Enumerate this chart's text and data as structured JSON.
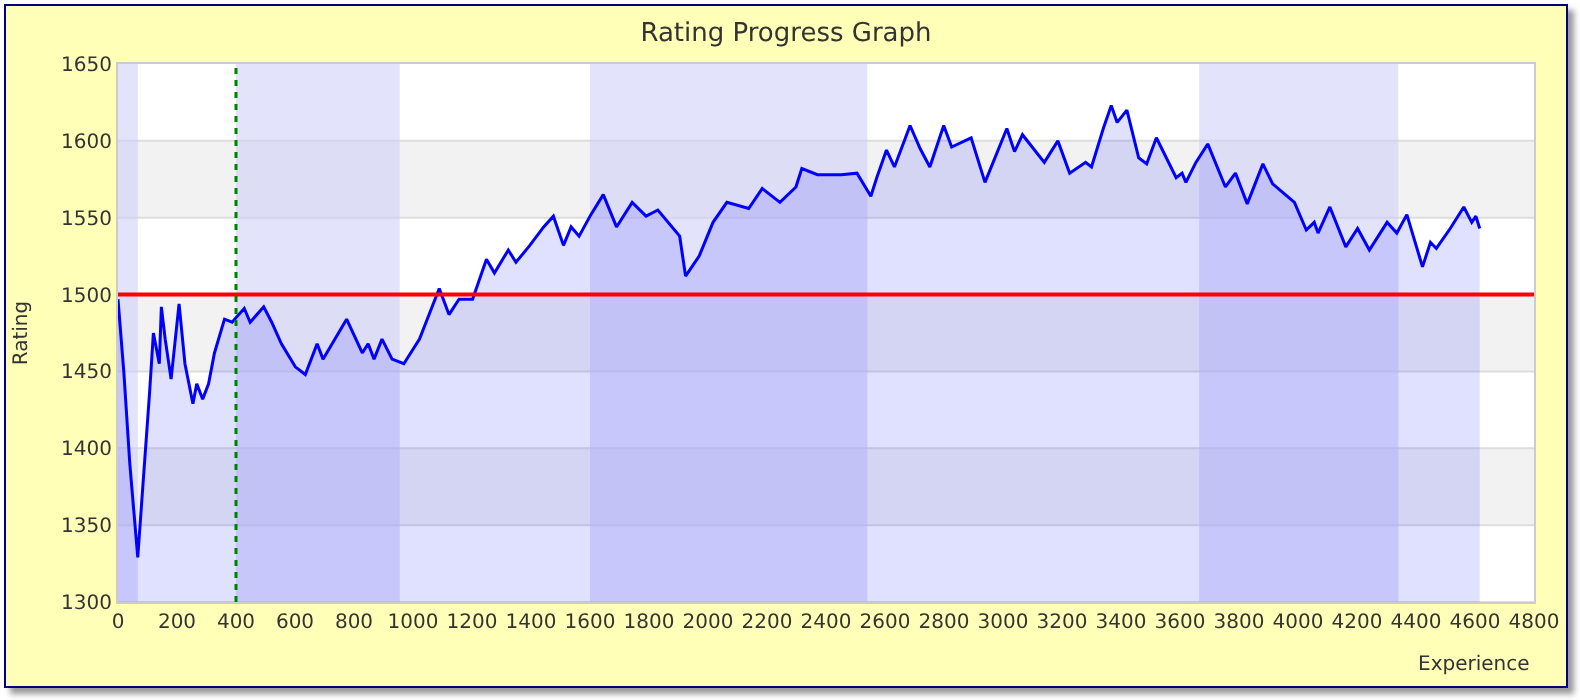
{
  "chart_data": {
    "type": "area",
    "title": "Rating Progress Graph",
    "xlabel": "Experience",
    "ylabel": "Rating",
    "x": [
      0,
      20,
      40,
      67,
      80,
      107,
      120,
      140,
      147,
      160,
      180,
      207,
      227,
      254,
      267,
      287,
      307,
      327,
      361,
      387,
      400,
      428,
      448,
      494,
      521,
      554,
      601,
      635,
      675,
      695,
      775,
      828,
      848,
      868,
      895,
      929,
      969,
      1022,
      1089,
      1122,
      1156,
      1202,
      1249,
      1276,
      1323,
      1349,
      1396,
      1443,
      1476,
      1510,
      1536,
      1563,
      1603,
      1645,
      1690,
      1743,
      1790,
      1830,
      1904,
      1924,
      1970,
      2017,
      2064,
      2138,
      2184,
      2244,
      2298,
      2318,
      2371,
      2452,
      2505,
      2552,
      2572,
      2605,
      2632,
      2685,
      2719,
      2752,
      2799,
      2826,
      2892,
      2939,
      3013,
      3039,
      3066,
      3140,
      3186,
      3226,
      3280,
      3300,
      3340,
      3367,
      3387,
      3420,
      3460,
      3487,
      3520,
      3587,
      3607,
      3620,
      3654,
      3694,
      3754,
      3788,
      3828,
      3881,
      3914,
      3988,
      4028,
      4055,
      4068,
      4108,
      4162,
      4202,
      4242,
      4302,
      4335,
      4369,
      4422,
      4449,
      4469,
      4516,
      4562,
      4589,
      4603,
      4616
    ],
    "series": [
      {
        "color": "#0000ff",
        "values": [
          1497,
          1449,
          1390,
          1329,
          1364,
          1436,
          1475,
          1455,
          1492,
          1471,
          1445,
          1494,
          1455,
          1429,
          1442,
          1432,
          1442,
          1462,
          1484,
          1482,
          1485,
          1491,
          1482,
          1492,
          1482,
          1468,
          1453,
          1448,
          1468,
          1458,
          1484,
          1462,
          1468,
          1458,
          1471,
          1458,
          1455,
          1471,
          1504,
          1487,
          1497,
          1497,
          1523,
          1514,
          1529,
          1521,
          1532,
          1544,
          1551,
          1532,
          1544,
          1538,
          1552,
          1565,
          1544,
          1560,
          1551,
          1555,
          1538,
          1512,
          1525,
          1547,
          1560,
          1556,
          1569,
          1560,
          1570,
          1582,
          1578,
          1578,
          1579,
          1564,
          1576,
          1594,
          1583,
          1610,
          1595,
          1583,
          1610,
          1596,
          1602,
          1573,
          1608,
          1593,
          1604,
          1586,
          1600,
          1579,
          1586,
          1583,
          1608,
          1623,
          1612,
          1620,
          1589,
          1585,
          1602,
          1576,
          1579,
          1573,
          1586,
          1598,
          1570,
          1579,
          1559,
          1585,
          1572,
          1560,
          1542,
          1547,
          1540,
          1557,
          1531,
          1543,
          1529,
          1547,
          1540,
          1552,
          1518,
          1534,
          1530,
          1543,
          1557,
          1547,
          1551,
          1543
        ]
      }
    ],
    "xlim": [
      0,
      4800
    ],
    "xticks": [
      0,
      200,
      400,
      600,
      800,
      1000,
      1200,
      1400,
      1600,
      1800,
      2000,
      2200,
      2400,
      2600,
      2800,
      3000,
      3200,
      3400,
      3600,
      3800,
      4000,
      4200,
      4400,
      4600,
      4800
    ],
    "ylim": [
      1300,
      1650
    ],
    "yticks": [
      1300,
      1350,
      1400,
      1450,
      1500,
      1550,
      1600,
      1650
    ],
    "grid": "y",
    "ref_lines": [
      {
        "axis": "y",
        "value": 1500,
        "color": "#ff0000",
        "line_style": "solid"
      },
      {
        "axis": "x",
        "value": 400,
        "color": "#008000",
        "line_style": "dotted"
      }
    ],
    "bands": [
      {
        "axis": "x",
        "from": 0,
        "to": 67,
        "color": "#ccccfa"
      },
      {
        "axis": "x",
        "from": 400,
        "to": 955,
        "color": "#ccccfa"
      },
      {
        "axis": "x",
        "from": 1600,
        "to": 2540,
        "color": "#ccccfa"
      },
      {
        "axis": "x",
        "from": 3665,
        "to": 4340,
        "color": "#ccccfa"
      }
    ]
  }
}
